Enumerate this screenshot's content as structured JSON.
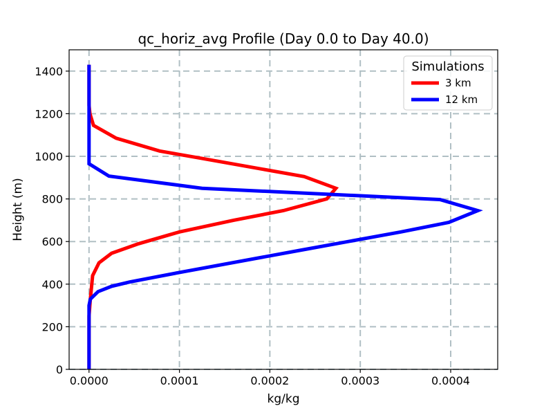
{
  "chart_data": {
    "type": "line",
    "title": "qc_horiz_avg Profile (Day 0.0 to Day 40.0)",
    "xlabel": "kg/kg",
    "ylabel": "Height (m)",
    "xlim": [
      -2.2e-05,
      0.000452
    ],
    "ylim": [
      0,
      1500
    ],
    "x_ticks": [
      0.0,
      0.0001,
      0.0002,
      0.0003,
      0.0004
    ],
    "x_tick_labels": [
      "0.0000",
      "0.0001",
      "0.0002",
      "0.0003",
      "0.0004"
    ],
    "y_ticks": [
      0,
      200,
      400,
      600,
      800,
      1000,
      1200,
      1400
    ],
    "y_tick_labels": [
      "0",
      "200",
      "400",
      "600",
      "800",
      "1000",
      "1200",
      "1400"
    ],
    "grid": true,
    "legend": {
      "title": "Simulations",
      "placement": "top-right"
    },
    "series": [
      {
        "name": "3 km",
        "color": "#ff0000",
        "points": [
          {
            "x": 0.0,
            "y": 0
          },
          {
            "x": 0.0,
            "y": 250
          },
          {
            "x": 1.5e-06,
            "y": 330
          },
          {
            "x": 4e-06,
            "y": 440
          },
          {
            "x": 1.1e-05,
            "y": 500
          },
          {
            "x": 2.5e-05,
            "y": 545
          },
          {
            "x": 5.5e-05,
            "y": 590
          },
          {
            "x": 0.0001,
            "y": 645
          },
          {
            "x": 0.00016,
            "y": 700
          },
          {
            "x": 0.000215,
            "y": 745
          },
          {
            "x": 0.000263,
            "y": 800
          },
          {
            "x": 0.000273,
            "y": 850
          },
          {
            "x": 0.000238,
            "y": 905
          },
          {
            "x": 0.000125,
            "y": 990
          },
          {
            "x": 7.8e-05,
            "y": 1025
          },
          {
            "x": 3e-05,
            "y": 1085
          },
          {
            "x": 5e-06,
            "y": 1145
          },
          {
            "x": 1e-06,
            "y": 1200
          },
          {
            "x": 0.0,
            "y": 1240
          },
          {
            "x": 0.0,
            "y": 1430
          }
        ]
      },
      {
        "name": "12 km",
        "color": "#0000ff",
        "points": [
          {
            "x": 0.0,
            "y": 0
          },
          {
            "x": 0.0,
            "y": 300
          },
          {
            "x": 1.5e-06,
            "y": 330
          },
          {
            "x": 1e-05,
            "y": 365
          },
          {
            "x": 2.5e-05,
            "y": 390
          },
          {
            "x": 4.5e-05,
            "y": 410
          },
          {
            "x": 0.0001,
            "y": 455
          },
          {
            "x": 0.000235,
            "y": 560
          },
          {
            "x": 0.000345,
            "y": 645
          },
          {
            "x": 0.000398,
            "y": 690
          },
          {
            "x": 0.00043,
            "y": 745
          },
          {
            "x": 0.000388,
            "y": 797
          },
          {
            "x": 0.000125,
            "y": 850
          },
          {
            "x": 2.2e-05,
            "y": 907
          },
          {
            "x": 0.0,
            "y": 965
          },
          {
            "x": 0.0,
            "y": 1430
          }
        ]
      }
    ]
  }
}
